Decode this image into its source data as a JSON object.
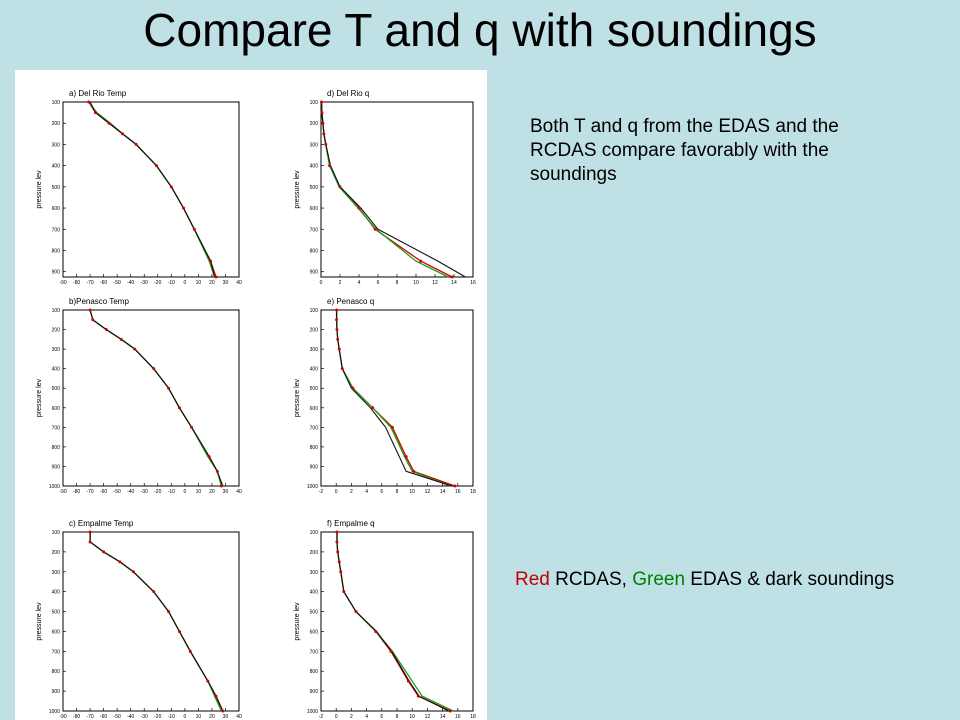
{
  "slide": {
    "title": "Compare T and q with soundings",
    "note_top": "Both T and q from the EDAS and the RCDAS compare favorably with the soundings",
    "legend_note": {
      "red_word": "Red",
      "red_label": " RCDAS, ",
      "green_word": "Green",
      "green_label": " EDAS & dark soundings",
      "colors": {
        "rcdas": "#d40000",
        "edas": "#1aa01a",
        "sounding": "#101018"
      }
    }
  },
  "chart_data": [
    {
      "type": "line",
      "title": "a) Del Rio Temp",
      "ylabel": "pressure lev",
      "yticks": [
        "100",
        "200",
        "300",
        "400",
        "500",
        "600",
        "700",
        "800",
        "900"
      ],
      "ylim": [
        100,
        925
      ],
      "xticks": [
        "-90",
        "-80",
        "-70",
        "-60",
        "-50",
        "-40",
        "-30",
        "-20",
        "-10",
        "0",
        "10",
        "20",
        "30",
        "40"
      ],
      "xlim": [
        -90,
        40
      ],
      "y_inverted": true,
      "p": [
        100,
        150,
        200,
        250,
        300,
        400,
        500,
        600,
        700,
        850,
        925
      ],
      "series": [
        {
          "values": [
            -71,
            -66,
            -56,
            -46,
            -36,
            -21,
            -10,
            -1,
            7,
            19,
            23
          ]
        },
        {
          "values": [
            -71,
            -65,
            -55,
            -46,
            -36,
            -21,
            -10,
            -1,
            7,
            18,
            22
          ]
        },
        {
          "values": [
            -70,
            -66,
            -56,
            -46,
            -36,
            -21,
            -10,
            -1,
            7,
            19,
            22
          ]
        }
      ]
    },
    {
      "type": "line",
      "title": "d) Del Rio   q",
      "ylabel": "pressure lev",
      "yticks": [
        "100",
        "200",
        "300",
        "400",
        "500",
        "600",
        "700",
        "800",
        "900"
      ],
      "ylim": [
        100,
        925
      ],
      "xticks": [
        "0",
        "2",
        "4",
        "6",
        "8",
        "10",
        "12",
        "14",
        "16"
      ],
      "xlim": [
        0,
        16
      ],
      "y_inverted": true,
      "p": [
        100,
        150,
        200,
        250,
        300,
        400,
        500,
        600,
        700,
        850,
        925
      ],
      "series": [
        {
          "values": [
            0.05,
            0.1,
            0.2,
            0.3,
            0.5,
            0.9,
            2.0,
            4.0,
            5.7,
            10.5,
            13.8
          ]
        },
        {
          "values": [
            0.05,
            0.1,
            0.2,
            0.3,
            0.5,
            0.9,
            1.9,
            3.9,
            5.8,
            10.0,
            13.4
          ]
        },
        {
          "values": [
            0.05,
            0.1,
            0.2,
            0.3,
            0.5,
            1.0,
            2.0,
            4.2,
            6.0,
            12.3,
            15.2
          ]
        }
      ]
    },
    {
      "type": "line",
      "title": "b)Penasco Temp",
      "ylabel": "pressure lev",
      "yticks": [
        "100",
        "200",
        "300",
        "400",
        "500",
        "600",
        "700",
        "800",
        "900",
        "1000"
      ],
      "ylim": [
        100,
        1000
      ],
      "xticks": [
        "-90",
        "-80",
        "-70",
        "-60",
        "-50",
        "-40",
        "-30",
        "-20",
        "-10",
        "0",
        "10",
        "20",
        "30",
        "40"
      ],
      "xlim": [
        -90,
        40
      ],
      "y_inverted": true,
      "p": [
        100,
        150,
        200,
        250,
        300,
        400,
        500,
        600,
        700,
        850,
        925,
        1000
      ],
      "series": [
        {
          "values": [
            -70,
            -68,
            -58,
            -47,
            -37,
            -23,
            -12,
            -4,
            5,
            18,
            24,
            27
          ]
        },
        {
          "values": [
            -70,
            -68,
            -58,
            -47,
            -37,
            -23,
            -12,
            -4,
            5,
            17,
            24,
            27
          ]
        },
        {
          "values": [
            -70,
            -68,
            -58,
            -47,
            -37,
            -23,
            -12,
            -4,
            5,
            18,
            24,
            28
          ]
        }
      ]
    },
    {
      "type": "line",
      "title": "e)  Penasco q",
      "ylabel": "pressure lev",
      "yticks": [
        "100",
        "200",
        "300",
        "400",
        "500",
        "600",
        "700",
        "800",
        "900",
        "1000"
      ],
      "ylim": [
        100,
        1000
      ],
      "xticks": [
        "-2",
        "0",
        "2",
        "4",
        "6",
        "8",
        "10",
        "12",
        "14",
        "16",
        "18"
      ],
      "xlim": [
        -2,
        18
      ],
      "y_inverted": true,
      "p": [
        100,
        150,
        200,
        250,
        300,
        400,
        500,
        600,
        700,
        850,
        925,
        1000
      ],
      "series": [
        {
          "values": [
            0.05,
            0.05,
            0.1,
            0.2,
            0.4,
            0.8,
            2.2,
            4.8,
            7.4,
            9.2,
            10.2,
            15.6
          ]
        },
        {
          "values": [
            0.05,
            0.05,
            0.1,
            0.2,
            0.4,
            0.8,
            2.2,
            4.8,
            7.2,
            9.0,
            10.0,
            15.0
          ]
        },
        {
          "values": [
            0.05,
            0.05,
            0.1,
            0.2,
            0.4,
            0.8,
            2.0,
            4.5,
            6.5,
            8.3,
            9.2,
            15.2
          ]
        }
      ]
    },
    {
      "type": "line",
      "title": "c) Empalme   Temp",
      "ylabel": "pressure lev",
      "yticks": [
        "100",
        "200",
        "300",
        "400",
        "500",
        "600",
        "700",
        "800",
        "900",
        "1000"
      ],
      "ylim": [
        100,
        1000
      ],
      "xticks": [
        "-90",
        "-80",
        "-70",
        "-60",
        "-50",
        "-40",
        "-30",
        "-20",
        "-10",
        "0",
        "10",
        "20",
        "30",
        "40"
      ],
      "xlim": [
        -90,
        40
      ],
      "y_inverted": true,
      "p": [
        100,
        150,
        200,
        250,
        300,
        400,
        500,
        600,
        700,
        850,
        925,
        1000
      ],
      "series": [
        {
          "values": [
            -70,
            -70,
            -60,
            -48,
            -38,
            -23,
            -12,
            -4,
            4,
            17,
            23,
            28
          ]
        },
        {
          "values": [
            -70,
            -70,
            -60,
            -48,
            -38,
            -23,
            -12,
            -4,
            4,
            17,
            22,
            27
          ]
        },
        {
          "values": [
            -70,
            -70,
            -60,
            -48,
            -38,
            -23,
            -12,
            -4,
            4,
            17,
            23,
            28
          ]
        }
      ]
    },
    {
      "type": "line",
      "title": "f) Empalme q",
      "ylabel": "pressure lev",
      "yticks": [
        "100",
        "200",
        "300",
        "400",
        "500",
        "600",
        "700",
        "800",
        "900",
        "1000"
      ],
      "ylim": [
        100,
        1000
      ],
      "xticks": [
        "-2",
        "0",
        "2",
        "4",
        "6",
        "8",
        "10",
        "12",
        "14",
        "16",
        "18"
      ],
      "xlim": [
        -2,
        18
      ],
      "y_inverted": true,
      "p": [
        100,
        150,
        200,
        250,
        300,
        400,
        500,
        600,
        700,
        850,
        925,
        1000
      ],
      "series": [
        {
          "values": [
            0.1,
            0.1,
            0.2,
            0.4,
            0.6,
            1.0,
            2.6,
            5.2,
            7.2,
            9.5,
            10.8,
            15.0
          ]
        },
        {
          "values": [
            0.1,
            0.1,
            0.2,
            0.4,
            0.6,
            1.0,
            2.6,
            5.2,
            7.4,
            10.0,
            11.3,
            15.4
          ]
        },
        {
          "values": [
            0.1,
            0.1,
            0.2,
            0.4,
            0.6,
            1.0,
            2.6,
            5.3,
            7.3,
            9.6,
            10.9,
            14.8
          ]
        }
      ]
    }
  ]
}
